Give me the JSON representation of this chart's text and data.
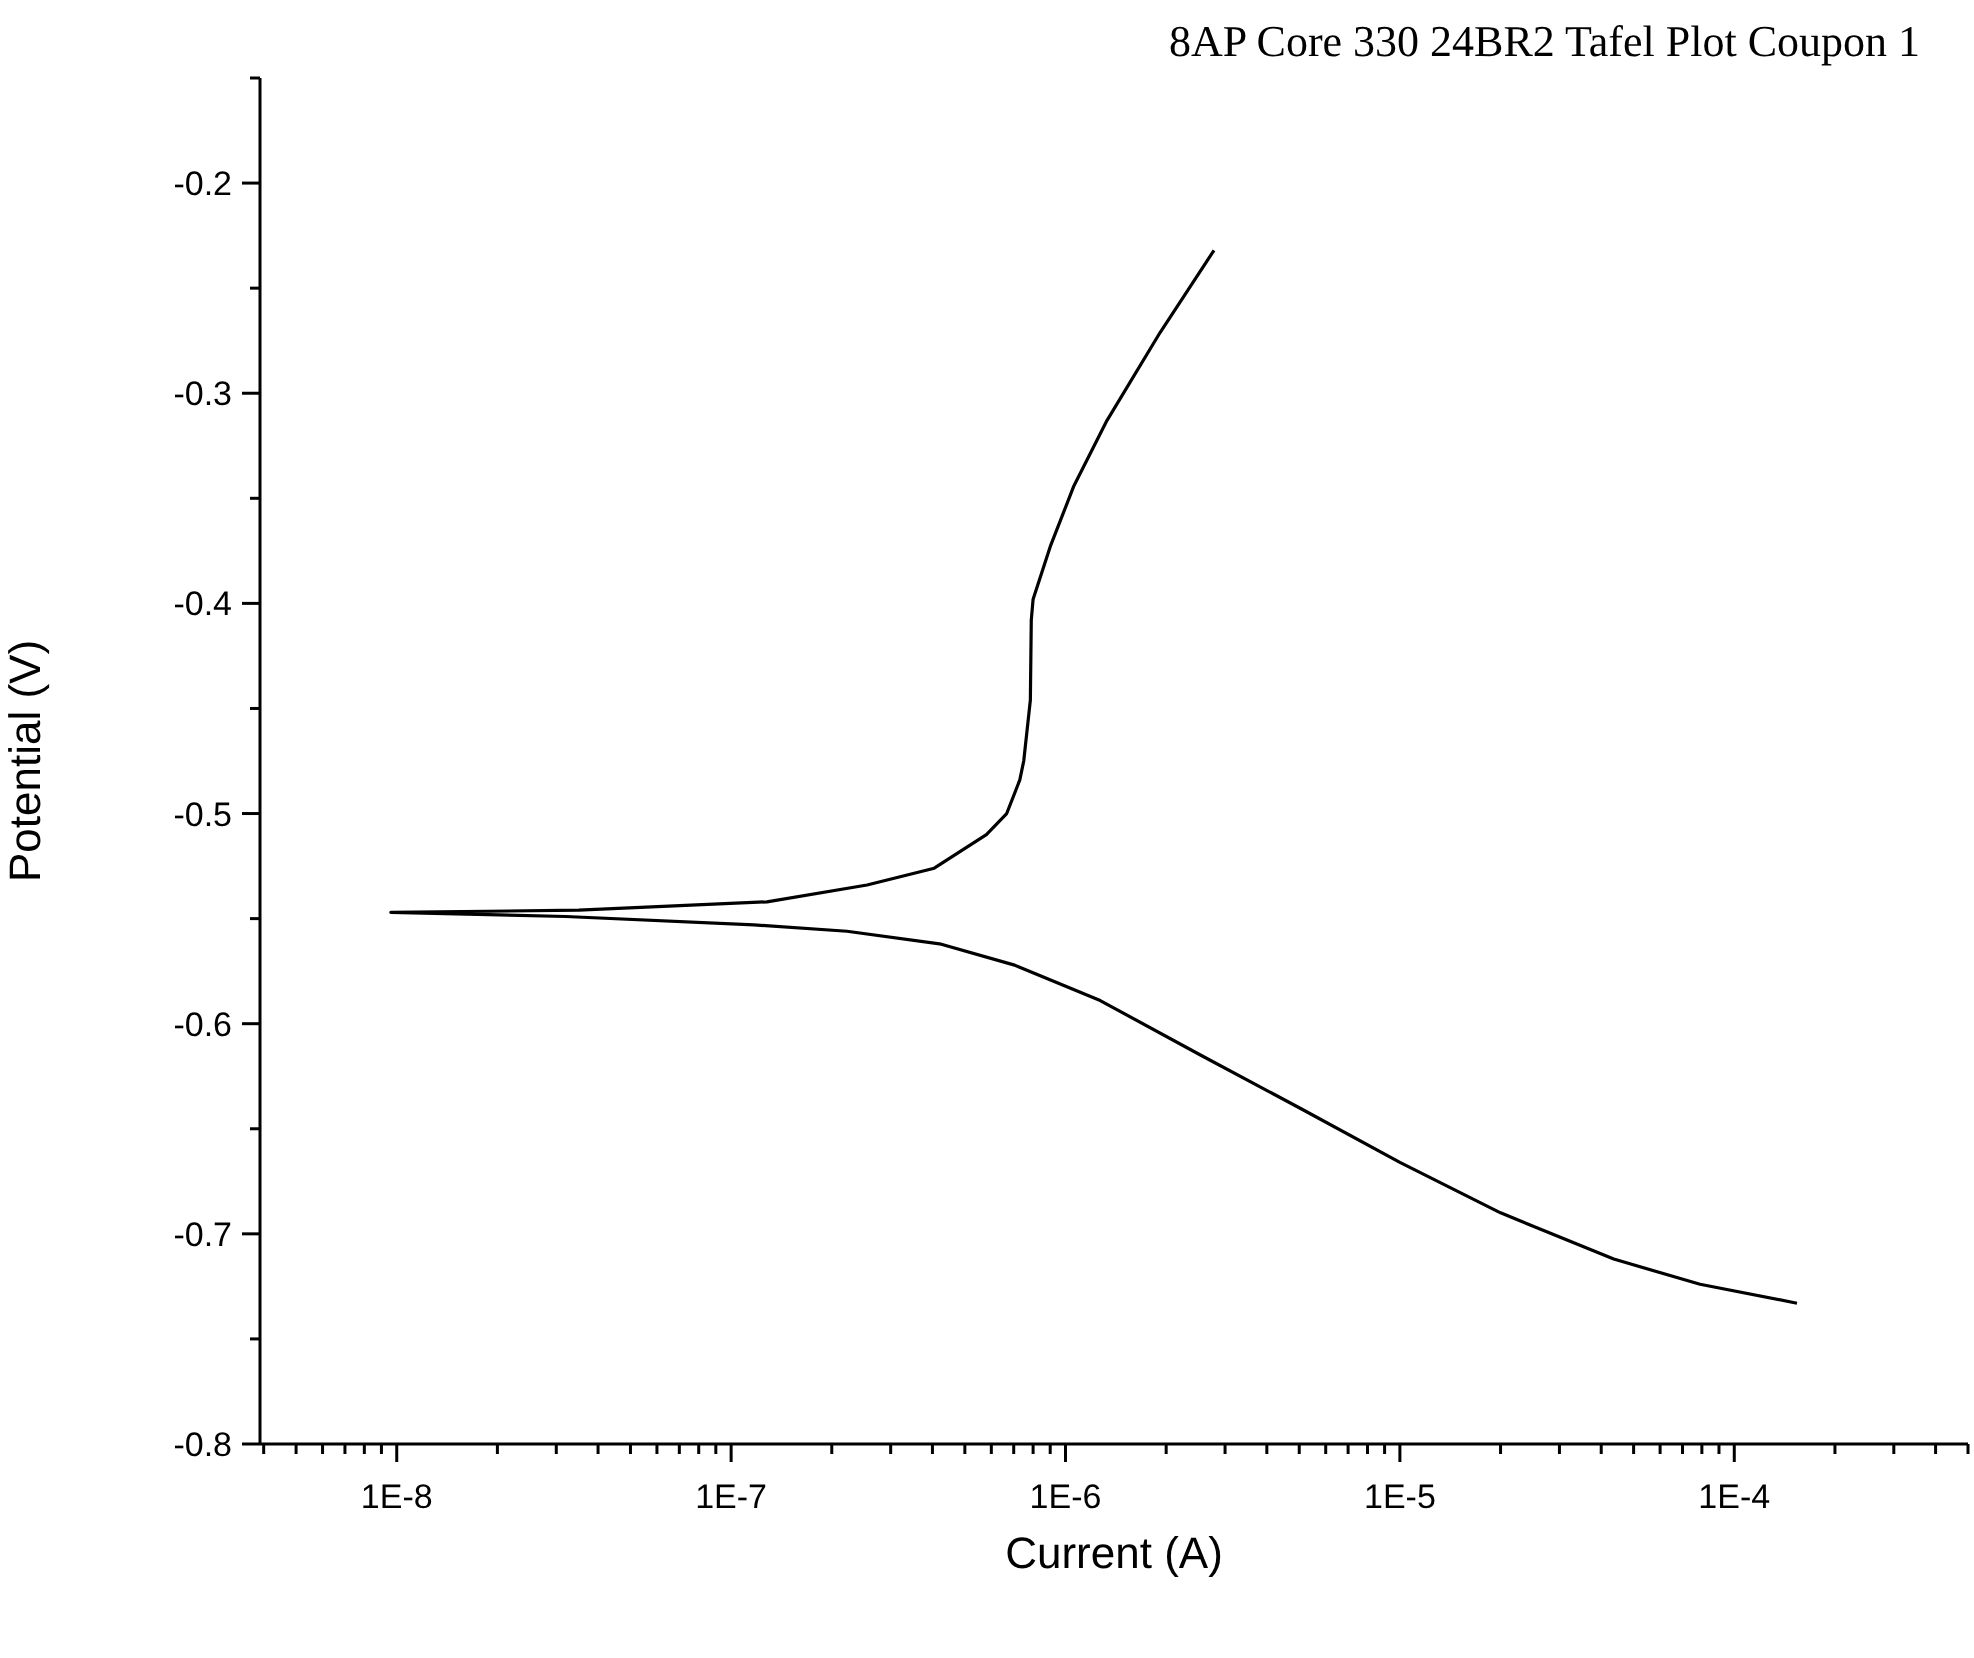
{
  "chart_data": {
    "type": "line",
    "title": "8AP Core 330 24BR2 Tafel Plot Coupon 1",
    "xlabel": "Current (A)",
    "ylabel": "Potential (V)",
    "log": "x",
    "grid": false,
    "legend": false,
    "marker": "none",
    "line_style": "solid",
    "color": "#000000",
    "x": [
      0.000154,
      7.9e-05,
      4.36e-05,
      2e-05,
      1e-05,
      5e-06,
      2.54e-06,
      1.27e-06,
      7e-07,
      4.2e-07,
      2.22e-07,
      1.17e-07,
      3.2e-08,
      9.6e-09,
      3.5e-08,
      1.28e-07,
      2.55e-07,
      4.05e-07,
      5.8e-07,
      6.67e-07,
      7.3e-07,
      7.5e-07,
      7.85e-07,
      7.9e-07,
      8e-07,
      9e-07,
      1.06e-06,
      1.33e-06,
      1.92e-06,
      2.78e-06
    ],
    "values": [
      -0.733,
      -0.724,
      -0.712,
      -0.69,
      -0.666,
      -0.64,
      -0.615,
      -0.589,
      -0.572,
      -0.562,
      -0.556,
      -0.553,
      -0.549,
      -0.547,
      -0.546,
      -0.542,
      -0.534,
      -0.526,
      -0.51,
      -0.5,
      -0.484,
      -0.475,
      -0.446,
      -0.408,
      -0.398,
      -0.373,
      -0.344,
      -0.313,
      -0.271,
      -0.232
    ],
    "xlim": [
      3.9e-09,
      0.0005
    ],
    "xticks": [
      {
        "value": 4e-09,
        "label": null
      },
      {
        "value": 5e-09,
        "label": null
      },
      {
        "value": 6e-09,
        "label": null
      },
      {
        "value": 7e-09,
        "label": null
      },
      {
        "value": 8e-09,
        "label": null
      },
      {
        "value": 9e-09,
        "label": null
      },
      {
        "value": 1e-08,
        "label": "1E-8"
      },
      {
        "value": 2e-08,
        "label": null
      },
      {
        "value": 3e-08,
        "label": null
      },
      {
        "value": 4e-08,
        "label": null
      },
      {
        "value": 5e-08,
        "label": null
      },
      {
        "value": 6e-08,
        "label": null
      },
      {
        "value": 7e-08,
        "label": null
      },
      {
        "value": 8e-08,
        "label": null
      },
      {
        "value": 9e-08,
        "label": null
      },
      {
        "value": 1e-07,
        "label": "1E-7"
      },
      {
        "value": 2e-07,
        "label": null
      },
      {
        "value": 3e-07,
        "label": null
      },
      {
        "value": 4e-07,
        "label": null
      },
      {
        "value": 5e-07,
        "label": null
      },
      {
        "value": 6e-07,
        "label": null
      },
      {
        "value": 7e-07,
        "label": null
      },
      {
        "value": 8e-07,
        "label": null
      },
      {
        "value": 9e-07,
        "label": null
      },
      {
        "value": 1e-06,
        "label": "1E-6"
      },
      {
        "value": 2e-06,
        "label": null
      },
      {
        "value": 3e-06,
        "label": null
      },
      {
        "value": 4e-06,
        "label": null
      },
      {
        "value": 5e-06,
        "label": null
      },
      {
        "value": 6e-06,
        "label": null
      },
      {
        "value": 7e-06,
        "label": null
      },
      {
        "value": 8e-06,
        "label": null
      },
      {
        "value": 9e-06,
        "label": null
      },
      {
        "value": 1e-05,
        "label": "1E-5"
      },
      {
        "value": 2e-05,
        "label": null
      },
      {
        "value": 3e-05,
        "label": null
      },
      {
        "value": 4e-05,
        "label": null
      },
      {
        "value": 5e-05,
        "label": null
      },
      {
        "value": 6e-05,
        "label": null
      },
      {
        "value": 7e-05,
        "label": null
      },
      {
        "value": 8e-05,
        "label": null
      },
      {
        "value": 9e-05,
        "label": null
      },
      {
        "value": 0.0001,
        "label": "1E-4"
      },
      {
        "value": 0.0002,
        "label": null
      },
      {
        "value": 0.0003,
        "label": null
      },
      {
        "value": 0.0004,
        "label": null
      },
      {
        "value": 0.0005,
        "label": null
      }
    ],
    "ylim": [
      -0.8,
      -0.15
    ],
    "yticks": [
      -0.8,
      {
        "value": -0.75,
        "label": null
      },
      -0.7,
      {
        "value": -0.65,
        "label": null
      },
      -0.6,
      {
        "value": -0.55,
        "label": null
      },
      -0.5,
      {
        "value": -0.45,
        "label": null
      },
      -0.4,
      {
        "value": -0.35,
        "label": null
      },
      -0.3,
      {
        "value": -0.25,
        "label": null
      },
      -0.2,
      {
        "value": -0.15,
        "label": null
      }
    ]
  }
}
